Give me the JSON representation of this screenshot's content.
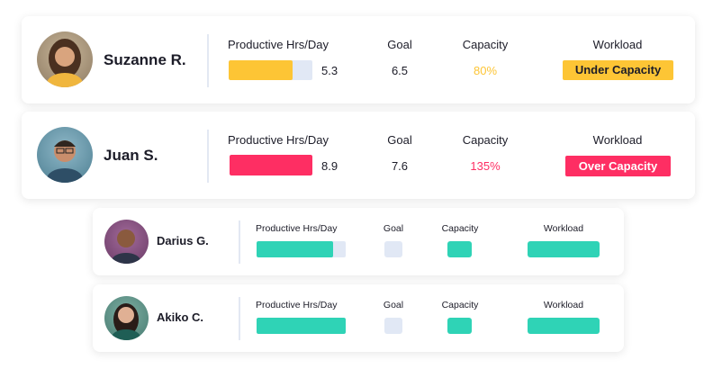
{
  "colors": {
    "yellow": "#fdc535",
    "pink": "#fe2e63",
    "teal": "#2fd3b6",
    "track": "#e1e8f5"
  },
  "rows": [
    {
      "name": "Suzanne R.",
      "hrs_label": "Productive Hrs/Day",
      "goal_label": "Goal",
      "capacity_label": "Capacity",
      "workload_label": "Workload",
      "hrs": "5.3",
      "hrs_fill": 0.76,
      "goal": "6.5",
      "capacity": "80%",
      "workload": "Under Capacity"
    },
    {
      "name": "Juan S.",
      "hrs_label": "Productive Hrs/Day",
      "goal_label": "Goal",
      "capacity_label": "Capacity",
      "workload_label": "Workload",
      "hrs": "8.9",
      "hrs_fill": 1.0,
      "goal": "7.6",
      "capacity": "135%",
      "workload": "Over Capacity"
    },
    {
      "name": "Darius G.",
      "hrs_label": "Productive Hrs/Day",
      "goal_label": "Goal",
      "capacity_label": "Capacity",
      "workload_label": "Workload",
      "hrs_fill": 0.86
    },
    {
      "name": "Akiko C.",
      "hrs_label": "Productive Hrs/Day",
      "goal_label": "Goal",
      "capacity_label": "Capacity",
      "workload_label": "Workload",
      "hrs_fill": 1.0
    }
  ]
}
